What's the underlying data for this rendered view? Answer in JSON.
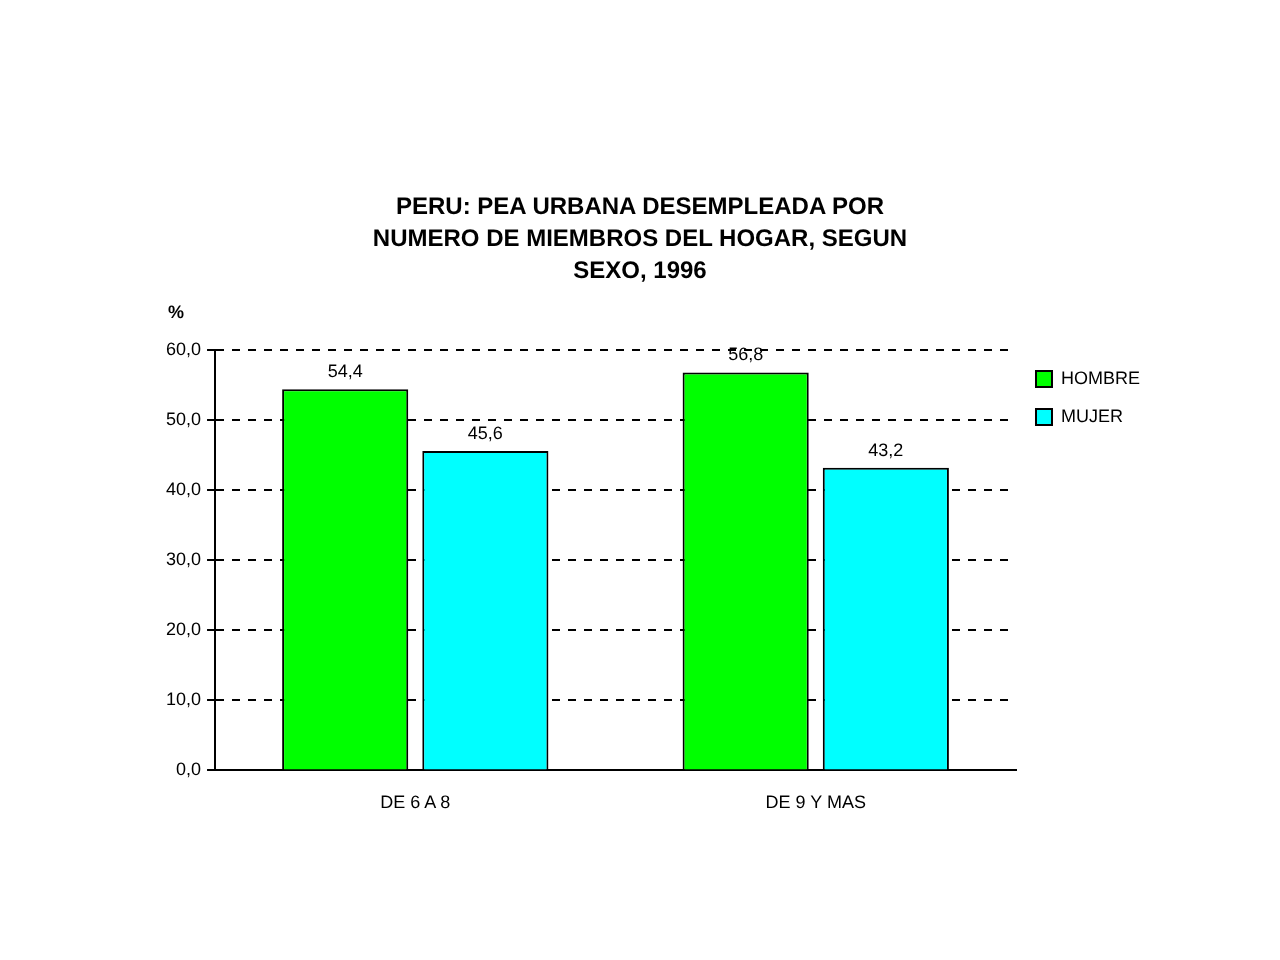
{
  "chart_data": {
    "type": "bar",
    "title": "PERU: PEA URBANA DESEMPLEADA POR NUMERO DE MIEMBROS DEL HOGAR, SEGUN SEXO, 1996",
    "ylabel": "%",
    "categories": [
      "DE 6 A 8",
      "DE 9 Y MAS"
    ],
    "series": [
      {
        "name": "HOMBRE",
        "color": "#00ff00",
        "values": [
          54.4,
          56.8
        ],
        "value_labels": [
          "54,4",
          "56,8"
        ]
      },
      {
        "name": "MUJER",
        "color": "#00ffff",
        "values": [
          45.6,
          43.2
        ],
        "value_labels": [
          "45,6",
          "43,2"
        ]
      }
    ],
    "ylim": [
      0,
      60
    ],
    "yticks": [
      {
        "value": 0,
        "label": "0,0"
      },
      {
        "value": 10,
        "label": "10,0"
      },
      {
        "value": 20,
        "label": "20,0"
      },
      {
        "value": 30,
        "label": "30,0"
      },
      {
        "value": 40,
        "label": "40,0"
      },
      {
        "value": 50,
        "label": "50,0"
      },
      {
        "value": 60,
        "label": "60,0"
      }
    ],
    "grid": "y",
    "legend": "right"
  }
}
